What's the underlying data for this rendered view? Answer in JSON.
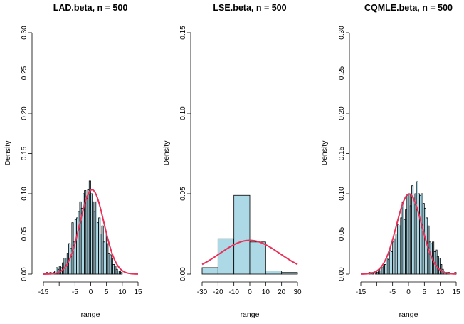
{
  "chart_data": [
    {
      "type": "bar",
      "subtype": "histogram-with-normal-density",
      "title": "LAD.beta, n = 500",
      "xlabel": "range",
      "ylabel": "Density",
      "xlim": [
        -15,
        15
      ],
      "ylim": [
        0,
        0.3
      ],
      "xticks": [
        -15,
        -10,
        -5,
        0,
        5,
        10,
        15
      ],
      "xtick_labels": [
        "-15",
        "",
        "-5",
        "0",
        "5",
        "10",
        "15"
      ],
      "yticks": [
        0,
        0.05,
        0.1,
        0.15,
        0.2,
        0.25,
        0.3
      ],
      "ytick_labels": [
        "0.00",
        "0.05",
        "0.10",
        "0.15",
        "0.20",
        "0.25",
        "0.30"
      ],
      "bin_width": 0.5,
      "bin_start": -14.5,
      "densities": [
        0,
        0.002,
        0,
        0.002,
        0,
        0.002,
        0.004,
        0.008,
        0.006,
        0.01,
        0.008,
        0.014,
        0.02,
        0.02,
        0.026,
        0.038,
        0.032,
        0.064,
        0.04,
        0.068,
        0.07,
        0.078,
        0.09,
        0.082,
        0.1,
        0.104,
        0.094,
        0.105,
        0.116,
        0.1,
        0.09,
        0.078,
        0.09,
        0.064,
        0.07,
        0.05,
        0.06,
        0.04,
        0.05,
        0.038,
        0.026,
        0.024,
        0.02,
        0.012,
        0.01,
        0.006,
        0.004,
        0.004,
        0.002,
        0,
        0,
        0
      ],
      "density_curve": {
        "mean": 0.4,
        "sd": 3.8,
        "color": "#e8325a"
      }
    },
    {
      "type": "bar",
      "subtype": "histogram-with-normal-density",
      "title": "LSE.beta, n = 500",
      "xlabel": "range",
      "ylabel": "Density",
      "xlim": [
        -30,
        30
      ],
      "ylim": [
        0,
        0.15
      ],
      "xticks": [
        -30,
        -20,
        -10,
        0,
        10,
        20,
        30
      ],
      "xtick_labels": [
        "-30",
        "-20",
        "-10",
        "0",
        "10",
        "20",
        "30"
      ],
      "yticks": [
        0,
        0.05,
        0.1,
        0.15
      ],
      "ytick_labels": [
        "0.00",
        "0.05",
        "0.10",
        "0.15"
      ],
      "bin_width": 10,
      "bin_start": -30,
      "densities": [
        0.004,
        0.022,
        0.049,
        0.02,
        0.002,
        0.001
      ],
      "density_curve": {
        "mean": 0,
        "sd": 19,
        "color": "#e8325a"
      }
    },
    {
      "type": "bar",
      "subtype": "histogram-with-normal-density",
      "title": "CQMLE.beta, n = 500",
      "xlabel": "range",
      "ylabel": "Density",
      "xlim": [
        -15,
        15
      ],
      "ylim": [
        0,
        0.3
      ],
      "xticks": [
        -15,
        -10,
        -5,
        0,
        5,
        10,
        15
      ],
      "xtick_labels": [
        "-15",
        "",
        "-5",
        "0",
        "5",
        "10",
        "15"
      ],
      "yticks": [
        0,
        0.05,
        0.1,
        0.15,
        0.2,
        0.25,
        0.3
      ],
      "ytick_labels": [
        "0.00",
        "0.05",
        "0.10",
        "0.15",
        "0.20",
        "0.25",
        "0.30"
      ],
      "bin_width": 0.5,
      "bin_start": -12.5,
      "densities": [
        0.002,
        0,
        0.002,
        0,
        0.004,
        0.002,
        0.006,
        0.004,
        0.008,
        0.012,
        0.012,
        0.02,
        0.018,
        0.03,
        0.028,
        0.04,
        0.044,
        0.05,
        0.062,
        0.06,
        0.07,
        0.09,
        0.068,
        0.08,
        0.098,
        0.1,
        0.085,
        0.11,
        0.096,
        0.1,
        0.115,
        0.1,
        0.098,
        0.1,
        0.088,
        0.082,
        0.07,
        0.06,
        0.04,
        0.038,
        0.04,
        0.028,
        0.03,
        0.022,
        0.02,
        0.012,
        0.006,
        0.004,
        0.002,
        0.002,
        0.002,
        0,
        0,
        0,
        0.002
      ],
      "density_curve": {
        "mean": 0.2,
        "sd": 4.0,
        "color": "#e8325a"
      }
    }
  ]
}
